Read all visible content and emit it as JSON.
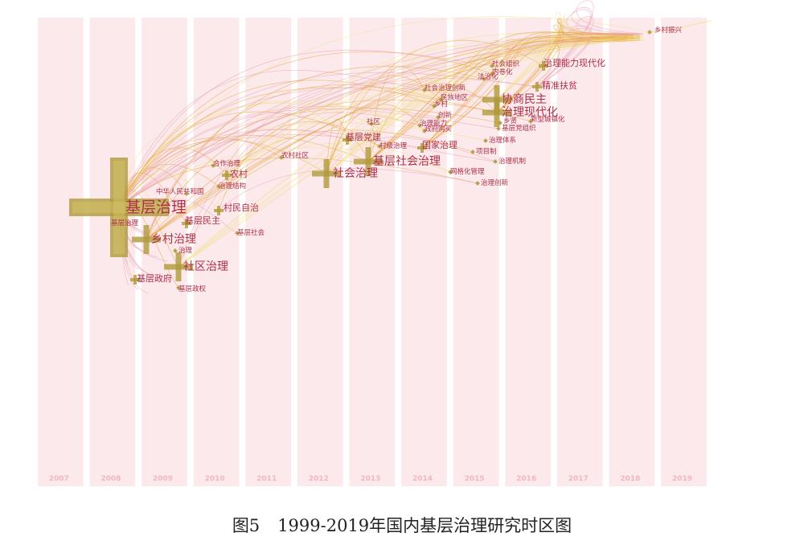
{
  "figure": {
    "caption_number": "图5",
    "caption_text": "1999-2019年国内基层治理研究时区图",
    "years": [
      "2007",
      "2008",
      "2009",
      "2010",
      "2011",
      "2012",
      "2013",
      "2014",
      "2015",
      "2016",
      "2017",
      "2018",
      "2019"
    ],
    "colors": {
      "band": "#fbe9ec",
      "year_text": "#f2b7bf",
      "node_label": "#b0304a",
      "link_warm": "#e8a03a",
      "link_pale": "#f3e28a",
      "link_pink": "#e9a0b0",
      "node_cross": "#b09a3c"
    },
    "nodes": [
      {
        "id": "jcz",
        "label": "基层治理",
        "year": 2008,
        "size": "xl"
      },
      {
        "id": "jczl",
        "label": "基层治理",
        "year": 2008,
        "size": "s"
      },
      {
        "id": "zhrm",
        "label": "中华人民共和国",
        "year": 2009,
        "size": "s"
      },
      {
        "id": "xczl",
        "label": "乡村治理",
        "year": 2009,
        "size": "l"
      },
      {
        "id": "zl",
        "label": "治理",
        "year": 2009,
        "size": "s"
      },
      {
        "id": "sqzl",
        "label": "社区治理",
        "year": 2009,
        "size": "l"
      },
      {
        "id": "jczf",
        "label": "基层政府",
        "year": 2008,
        "size": "m"
      },
      {
        "id": "jczq",
        "label": "基层政权",
        "year": 2009,
        "size": "s"
      },
      {
        "id": "hzxy",
        "label": "合作治理",
        "year": 2010,
        "size": "s"
      },
      {
        "id": "nc",
        "label": "农村",
        "year": 2010,
        "size": "m"
      },
      {
        "id": "zljg",
        "label": "治理结构",
        "year": 2010,
        "size": "s"
      },
      {
        "id": "jcmz",
        "label": "基层民主",
        "year": 2010,
        "size": "m"
      },
      {
        "id": "cmzz",
        "label": "村民自治",
        "year": 2010,
        "size": "m"
      },
      {
        "id": "jcsh",
        "label": "基层社会",
        "year": 2010,
        "size": "s"
      },
      {
        "id": "ncsq",
        "label": "农村社区",
        "year": 2011,
        "size": "s"
      },
      {
        "id": "shzl",
        "label": "社会治理",
        "year": 2012,
        "size": "l"
      },
      {
        "id": "jcdj",
        "label": "基层党建",
        "year": 2013,
        "size": "m"
      },
      {
        "id": "jq",
        "label": "社区",
        "year": 2013,
        "size": "s"
      },
      {
        "id": "zjhz",
        "label": "村级治理",
        "year": 2013,
        "size": "s"
      },
      {
        "id": "gjzl",
        "label": "国家治理",
        "year": 2014,
        "size": "m"
      },
      {
        "id": "jcshzl",
        "label": "基层社会治理",
        "year": 2013,
        "size": "l"
      },
      {
        "id": "wghgl",
        "label": "网格化管理",
        "year": 2014,
        "size": "s"
      },
      {
        "id": "shzz",
        "label": "社会组织",
        "year": 2015,
        "size": "s"
      },
      {
        "id": "sfh",
        "label": "法治化",
        "year": 2015,
        "size": "s"
      },
      {
        "id": "nmh",
        "label": "内卷化",
        "year": 2015,
        "size": "s"
      },
      {
        "id": "shzlcx",
        "label": "社会治理创新",
        "year": 2014,
        "size": "s"
      },
      {
        "id": "mzdq",
        "label": "民族地区",
        "year": 2014,
        "size": "s"
      },
      {
        "id": "cc",
        "label": "乡村",
        "year": 2014,
        "size": "s"
      },
      {
        "id": "cx",
        "label": "创新",
        "year": 2014,
        "size": "s"
      },
      {
        "id": "zlnl",
        "label": "治理能力",
        "year": 2014,
        "size": "s"
      },
      {
        "id": "zqjgx",
        "label": "政府购买",
        "year": 2014,
        "size": "s"
      },
      {
        "id": "xsmz",
        "label": "协商民主",
        "year": 2015,
        "size": "l"
      },
      {
        "id": "zlxdh",
        "label": "治理现代化",
        "year": 2015,
        "size": "l"
      },
      {
        "id": "zlnlxdh",
        "label": "治理能力现代化",
        "year": 2016,
        "size": "m"
      },
      {
        "id": "jzfp",
        "label": "精准扶贫",
        "year": 2016,
        "size": "m"
      },
      {
        "id": "qj",
        "label": "乡贤",
        "year": 2015,
        "size": "s"
      },
      {
        "id": "xxczh",
        "label": "新型城镇化",
        "year": 2016,
        "size": "s"
      },
      {
        "id": "jcdzz",
        "label": "基层党组织",
        "year": 2015,
        "size": "s"
      },
      {
        "id": "zltx",
        "label": "治理体系",
        "year": 2015,
        "size": "s"
      },
      {
        "id": "xmz",
        "label": "项目制",
        "year": 2015,
        "size": "s"
      },
      {
        "id": "zljz",
        "label": "治理机制",
        "year": 2015,
        "size": "s"
      },
      {
        "id": "zlcx",
        "label": "治理创新",
        "year": 2015,
        "size": "s"
      },
      {
        "id": "xczx",
        "label": "乡村振兴",
        "year": 2018,
        "size": "s"
      }
    ]
  }
}
